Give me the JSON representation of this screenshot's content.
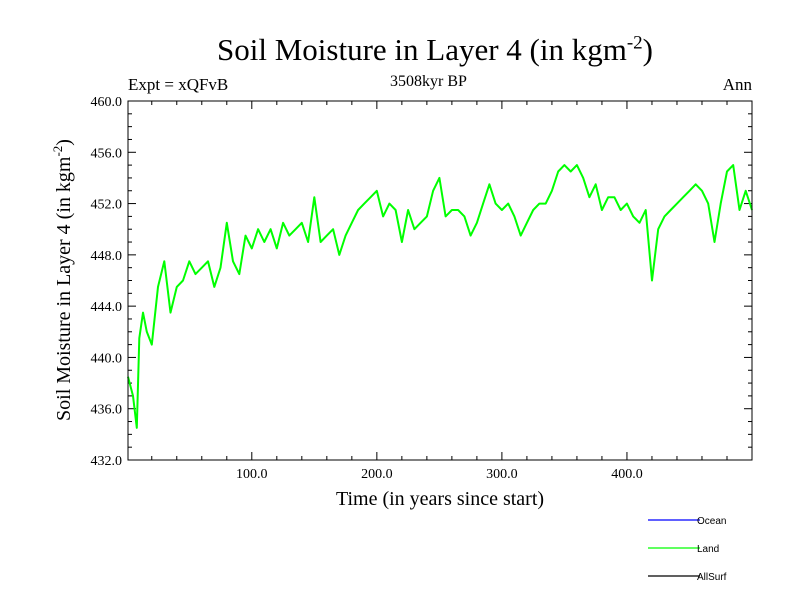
{
  "chart_data": {
    "type": "line",
    "title_main": "Soil Moisture in Layer 4 (in kgm",
    "title_sup": "-2",
    "title_close": ")",
    "subtitle_left": "Expt = xQFvB",
    "subtitle_center": "3508kyr BP",
    "subtitle_right": "Ann",
    "xlabel": "Time (in years since start)",
    "ylabel_main": "Soil Moisture in Layer 4 (in kgm",
    "ylabel_sup": "-2",
    "ylabel_close": ")",
    "xlim": [
      1,
      500
    ],
    "ylim": [
      432,
      460
    ],
    "xticks": [
      100,
      200,
      300,
      400
    ],
    "xtick_labels": [
      "100.0",
      "200.0",
      "300.0",
      "400.0"
    ],
    "yticks": [
      432,
      436,
      440,
      444,
      448,
      452,
      456,
      460
    ],
    "ytick_labels": [
      "432.0",
      "436.0",
      "440.0",
      "444.0",
      "448.0",
      "452.0",
      "456.0",
      "460.0"
    ],
    "legend": [
      {
        "name": "Ocean",
        "color": "#0000ff"
      },
      {
        "name": "Land",
        "color": "#00ff00"
      },
      {
        "name": "AllSurf",
        "color": "#000000"
      }
    ],
    "series": [
      {
        "name": "Land",
        "color": "#00ff00",
        "x": [
          1,
          5,
          8,
          10,
          13,
          16,
          20,
          25,
          30,
          35,
          40,
          45,
          50,
          55,
          60,
          65,
          70,
          75,
          80,
          85,
          90,
          95,
          100,
          105,
          110,
          115,
          120,
          125,
          130,
          135,
          140,
          145,
          150,
          155,
          160,
          165,
          170,
          175,
          180,
          185,
          190,
          195,
          200,
          205,
          210,
          215,
          220,
          225,
          230,
          235,
          240,
          245,
          250,
          255,
          260,
          265,
          270,
          275,
          280,
          285,
          290,
          295,
          300,
          305,
          310,
          315,
          320,
          325,
          330,
          335,
          340,
          345,
          350,
          355,
          360,
          365,
          370,
          375,
          380,
          385,
          390,
          395,
          400,
          405,
          410,
          415,
          420,
          425,
          430,
          435,
          440,
          445,
          450,
          455,
          460,
          465,
          470,
          475,
          480,
          485,
          490,
          495,
          500
        ],
        "values": [
          438.5,
          437.0,
          434.5,
          441.5,
          443.5,
          442.0,
          441.0,
          445.5,
          447.5,
          443.5,
          445.5,
          446.0,
          447.5,
          446.5,
          447.0,
          447.5,
          445.5,
          447.0,
          450.5,
          447.5,
          446.5,
          449.5,
          448.5,
          450.0,
          449.0,
          450.0,
          448.5,
          450.5,
          449.5,
          450.0,
          450.5,
          449.0,
          452.5,
          449.0,
          449.5,
          450.0,
          448.0,
          449.5,
          450.5,
          451.5,
          452.0,
          452.5,
          453.0,
          451.0,
          452.0,
          451.5,
          449.0,
          451.5,
          450.0,
          450.5,
          451.0,
          453.0,
          454.0,
          451.0,
          451.5,
          451.5,
          451.0,
          449.5,
          450.5,
          452.0,
          453.5,
          452.0,
          451.5,
          452.0,
          451.0,
          449.5,
          450.5,
          451.5,
          452.0,
          452.0,
          453.0,
          454.5,
          455.0,
          454.5,
          455.0,
          454.0,
          452.5,
          453.5,
          451.5,
          452.5,
          452.5,
          451.5,
          452.0,
          451.0,
          450.5,
          451.5,
          446.0,
          450.0,
          451.0,
          451.5,
          452.0,
          452.5,
          453.0,
          453.5,
          453.0,
          452.0,
          449.0,
          452.0,
          454.5,
          455.0,
          451.5,
          453.0,
          451.5
        ]
      }
    ]
  }
}
